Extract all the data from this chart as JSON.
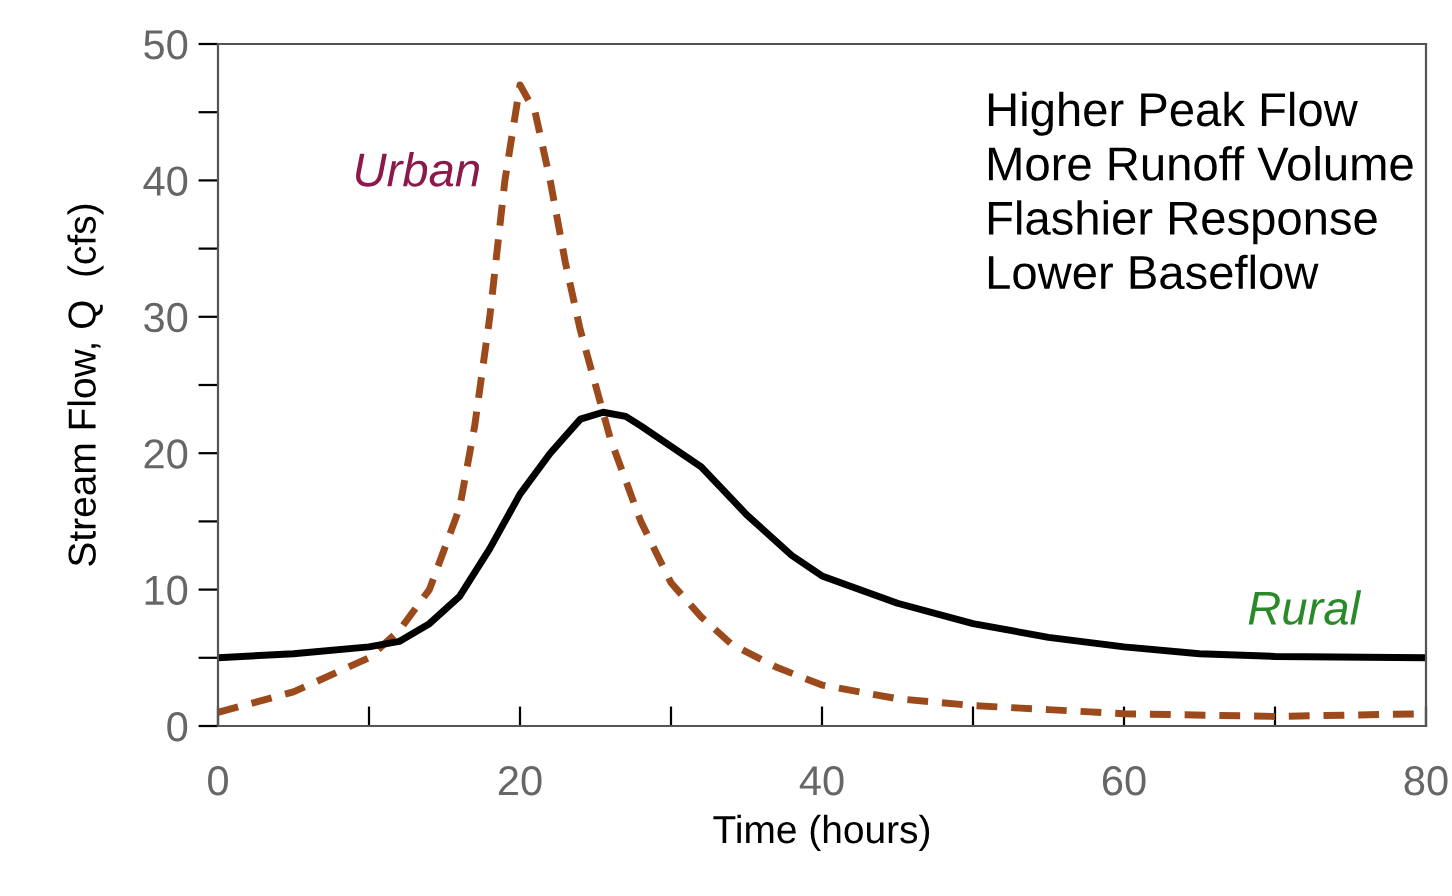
{
  "chart_data": {
    "type": "line",
    "xlabel": "Time (hours)",
    "ylabel": "Stream Flow, Q  (cfs)",
    "series": [
      {
        "name": "Urban",
        "color": "#9c4a1c",
        "line_style": "dashed",
        "x": [
          0,
          5,
          10,
          12,
          14,
          16,
          17,
          18,
          19,
          20,
          21,
          22,
          23,
          24,
          26,
          28,
          30,
          32,
          34,
          37,
          40,
          45,
          50,
          55,
          60,
          70,
          80
        ],
        "values": [
          1,
          2.5,
          5,
          7,
          10,
          16,
          22,
          30,
          40,
          47,
          45,
          40,
          34,
          29,
          21,
          15,
          10.5,
          8,
          6,
          4.3,
          3,
          2,
          1.5,
          1.2,
          0.9,
          0.7,
          0.9
        ]
      },
      {
        "name": "Rural",
        "color": "#000000",
        "line_style": "solid",
        "x": [
          0,
          5,
          10,
          12,
          14,
          16,
          18,
          20,
          22,
          24,
          25.5,
          27,
          28,
          30,
          32,
          35,
          38,
          40,
          45,
          50,
          55,
          60,
          65,
          70,
          80
        ],
        "values": [
          5,
          5.3,
          5.8,
          6.2,
          7.5,
          9.5,
          13,
          17,
          20,
          22.5,
          23,
          22.7,
          22,
          20.5,
          19,
          15.5,
          12.5,
          11,
          9,
          7.5,
          6.5,
          5.8,
          5.3,
          5.1,
          5
        ]
      }
    ],
    "annotations": [
      "Higher Peak Flow\nMore Runoff Volume\nFlashier Response\nLower Baseflow"
    ],
    "xlim": [
      0,
      80
    ],
    "ylim": [
      0,
      50
    ],
    "xticks": [
      0,
      {
        "value": 10,
        "label": null
      },
      20,
      {
        "value": 30,
        "label": null
      },
      40,
      {
        "value": 50,
        "label": null
      },
      60,
      {
        "value": 70,
        "label": null
      },
      80
    ],
    "yticks": [
      0,
      {
        "value": 5,
        "label": null
      },
      10,
      {
        "value": 15,
        "label": null
      },
      20,
      {
        "value": 25,
        "label": null
      },
      30,
      {
        "value": 35,
        "label": null
      },
      40,
      {
        "value": 45,
        "label": null
      },
      50
    ],
    "grid": false,
    "legend": false,
    "marker": "none"
  }
}
